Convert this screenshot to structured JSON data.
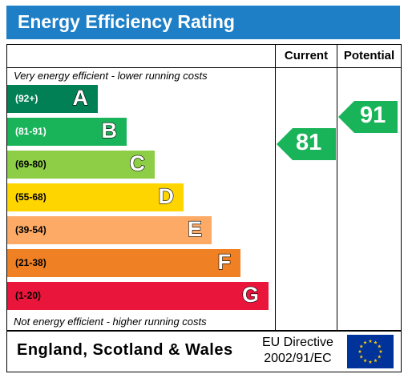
{
  "title": "Energy Efficiency Rating",
  "columns": {
    "current": "Current",
    "potential": "Potential"
  },
  "captions": {
    "top": "Very energy efficient - lower running costs",
    "bottom": "Not energy efficient - higher running costs"
  },
  "chart_data": {
    "type": "bar",
    "bands": [
      {
        "letter": "A",
        "range": "(92+)",
        "color": "#008054",
        "range_color": "#ffffff"
      },
      {
        "letter": "B",
        "range": "(81-91)",
        "color": "#19b459",
        "range_color": "#ffffff"
      },
      {
        "letter": "C",
        "range": "(69-80)",
        "color": "#8dce46",
        "range_color": "#000000"
      },
      {
        "letter": "D",
        "range": "(55-68)",
        "color": "#ffd500",
        "range_color": "#000000"
      },
      {
        "letter": "E",
        "range": "(39-54)",
        "color": "#fcaa65",
        "range_color": "#000000"
      },
      {
        "letter": "F",
        "range": "(21-38)",
        "color": "#ef8023",
        "range_color": "#000000"
      },
      {
        "letter": "G",
        "range": "(1-20)",
        "color": "#e9153b",
        "range_color": "#000000"
      }
    ],
    "current": {
      "value": 81,
      "band": "B",
      "color": "#19b459"
    },
    "potential": {
      "value": 91,
      "band": "B",
      "color": "#19b459"
    }
  },
  "footer": {
    "region": "England, Scotland & Wales",
    "directive_line1": "EU Directive",
    "directive_line2": "2002/91/EC"
  },
  "icons": {
    "flag": "eu-flag-icon"
  },
  "colors": {
    "title_bg": "#1e7fc7",
    "flag_bg": "#003399",
    "flag_stars": "#ffcc00"
  }
}
